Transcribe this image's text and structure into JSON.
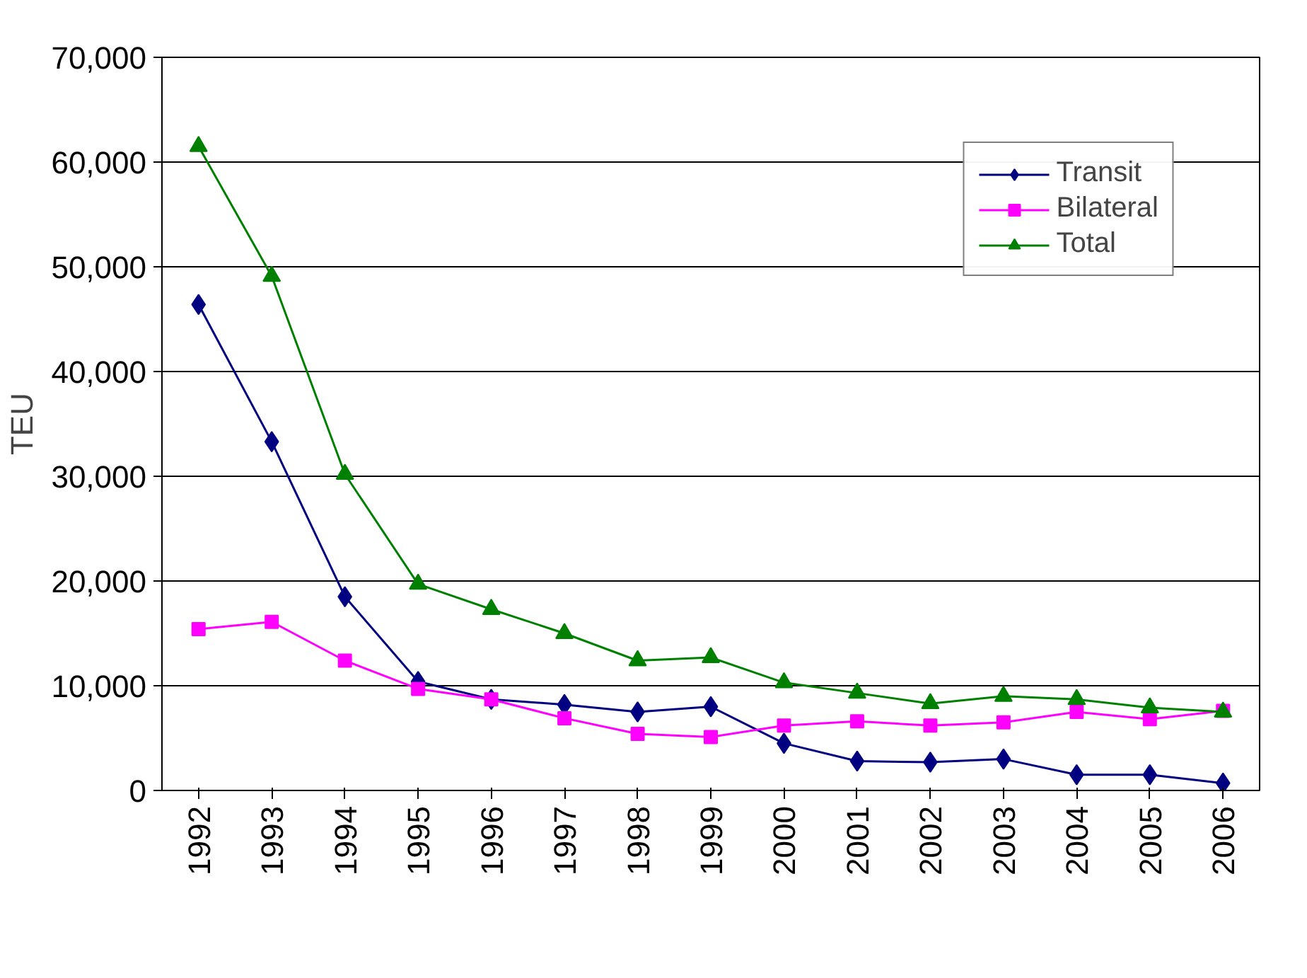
{
  "chart_data": {
    "type": "line",
    "ylabel": "TEU",
    "categories": [
      "1992",
      "1993",
      "1994",
      "1995",
      "1996",
      "1997",
      "1998",
      "1999",
      "2000",
      "2001",
      "2002",
      "2003",
      "2004",
      "2005",
      "2006"
    ],
    "series": [
      {
        "name": "Transit",
        "color": "#000080",
        "marker": "diamond",
        "values": [
          46400,
          33300,
          18500,
          10400,
          8700,
          8200,
          7500,
          8000,
          4500,
          2800,
          2700,
          3000,
          1500,
          1500,
          700
        ]
      },
      {
        "name": "Bilateral",
        "color": "#ff00ff",
        "marker": "square",
        "values": [
          15400,
          16100,
          12400,
          9700,
          8700,
          6900,
          5400,
          5100,
          6200,
          6600,
          6200,
          6500,
          7500,
          6800,
          7600
        ]
      },
      {
        "name": "Total",
        "color": "#008000",
        "marker": "triangle",
        "values": [
          61500,
          49100,
          30200,
          19700,
          17300,
          15000,
          12400,
          12700,
          10300,
          9300,
          8300,
          9000,
          8700,
          7900,
          7500
        ]
      }
    ],
    "ylim": [
      0,
      70000
    ],
    "yticks": [
      {
        "value": 0,
        "label": "0"
      },
      {
        "value": 10000,
        "label": "10,000"
      },
      {
        "value": 20000,
        "label": "20,000"
      },
      {
        "value": 30000,
        "label": "30,000"
      },
      {
        "value": 40000,
        "label": "40,000"
      },
      {
        "value": 50000,
        "label": "50,000"
      },
      {
        "value": 60000,
        "label": "60,000"
      },
      {
        "value": 70000,
        "label": "70,000"
      }
    ],
    "grid": "y",
    "legend": "top right",
    "line_style": "solid"
  }
}
